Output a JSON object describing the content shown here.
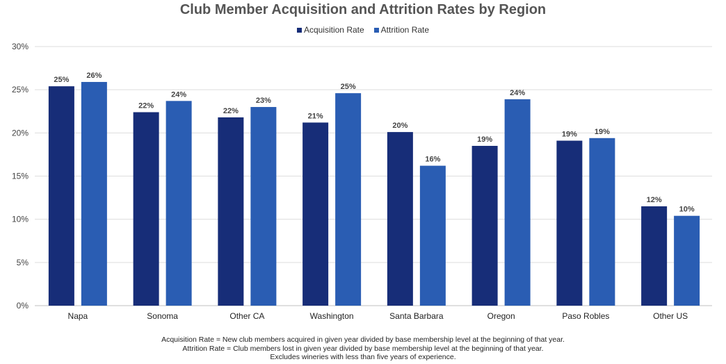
{
  "colors": {
    "acquisition": "#172d78",
    "attrition": "#2a5db3",
    "grid": "#dddddd",
    "axis": "#bfbfbf"
  },
  "chart_data": {
    "type": "bar",
    "title": "Club Member Acquisition and Attrition Rates by Region",
    "categories": [
      "Napa",
      "Sonoma",
      "Other CA",
      "Washington",
      "Santa Barbara",
      "Oregon",
      "Paso Robles",
      "Other US"
    ],
    "series": [
      {
        "name": "Acquisition Rate",
        "values": [
          25.4,
          22.4,
          21.8,
          21.2,
          20.1,
          18.5,
          19.1,
          11.5
        ],
        "labels": [
          "25%",
          "22%",
          "22%",
          "21%",
          "20%",
          "19%",
          "19%",
          "12%"
        ]
      },
      {
        "name": "Attrition Rate",
        "values": [
          25.9,
          23.7,
          23.0,
          24.6,
          16.2,
          23.9,
          19.4,
          10.4
        ],
        "labels": [
          "26%",
          "24%",
          "23%",
          "25%",
          "16%",
          "24%",
          "19%",
          "10%"
        ]
      }
    ],
    "ylim": [
      0,
      30
    ],
    "yticks": [
      "0%",
      "5%",
      "10%",
      "15%",
      "20%",
      "25%",
      "30%"
    ],
    "grid": true,
    "legend_position": "top"
  },
  "footnotes": [
    "Acquisition Rate = New club members acquired in given year divided by base membership level at the beginning of that year.",
    "Attrition Rate = Club members lost in given year divided by base membership level at the beginning of that year.",
    "Excludes wineries with less than five years of experience."
  ]
}
